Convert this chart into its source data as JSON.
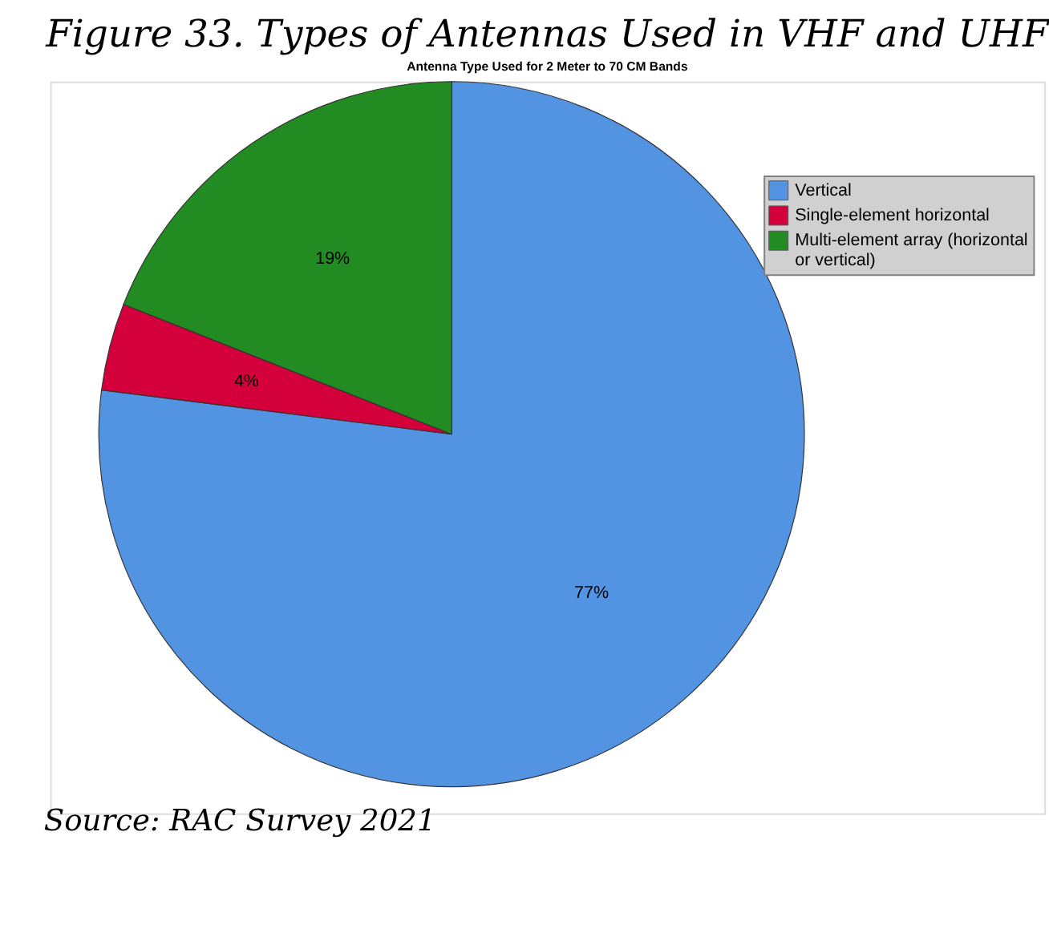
{
  "chart_data": {
    "type": "pie",
    "title": "Figure 33. Types of Antennas Used in VHF and UHF",
    "subtitle": "Antenna Type Used for 2 Meter to 70 CM Bands",
    "categories": [
      "Vertical",
      "Single-element horizontal",
      "Multi-element array (horizontal or vertical)"
    ],
    "values": [
      77,
      4,
      19
    ],
    "colors": [
      "#5294e2",
      "#d3003c",
      "#228b22"
    ],
    "value_labels": [
      "77%",
      "4%",
      "19%"
    ],
    "legend": "top right",
    "annotations": [
      "Source: RAC Survey 2021"
    ]
  }
}
